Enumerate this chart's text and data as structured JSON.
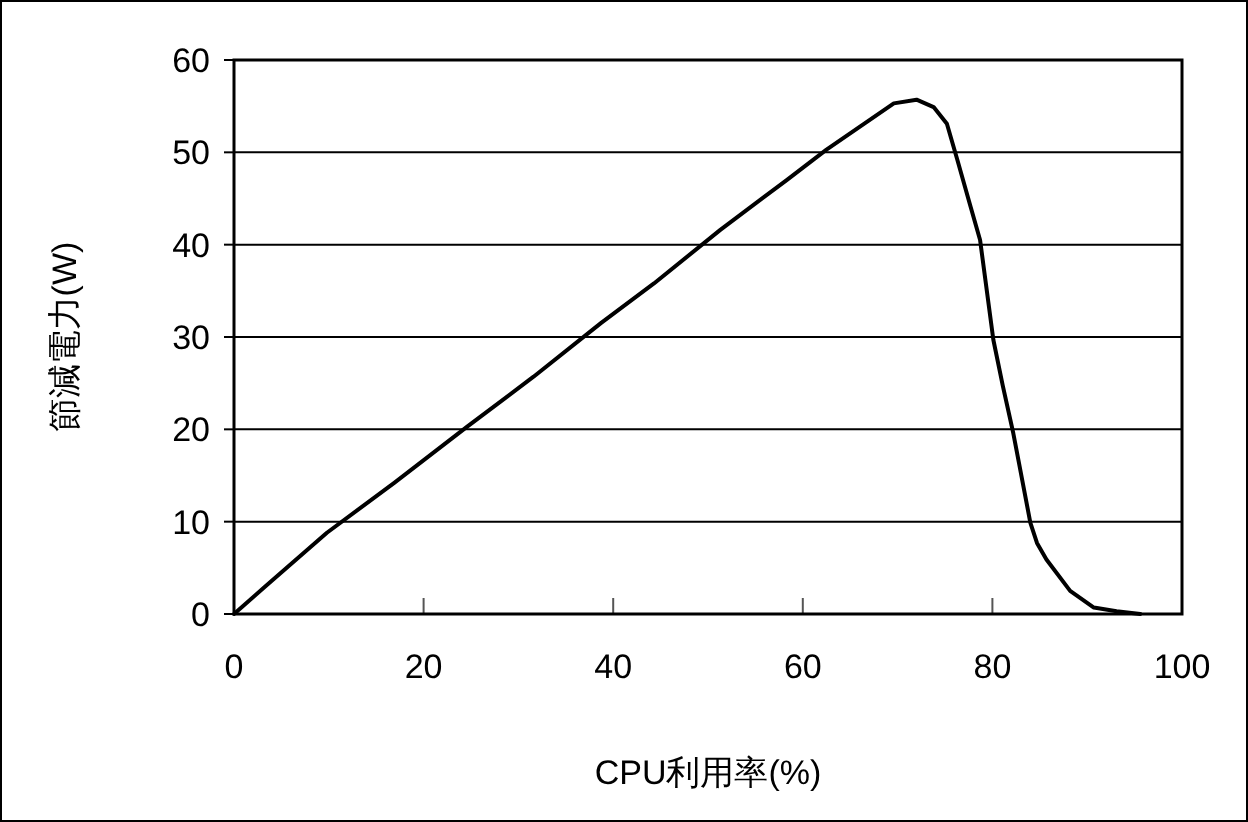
{
  "chart_data": {
    "type": "line",
    "xlabel": "CPU利用率(%)",
    "ylabel": "節減電力(W)",
    "xlim": [
      0,
      100
    ],
    "xticks": [
      0,
      20,
      40,
      60,
      80,
      100
    ],
    "ylim": [
      0,
      60
    ],
    "yticks": [
      0,
      10,
      20,
      30,
      40,
      50,
      60
    ],
    "grid": "y",
    "series": [
      {
        "color": "#000000",
        "x": [
          0,
          3.2,
          9.8,
          16.9,
          24.6,
          31.6,
          38.7,
          44.3,
          51.3,
          58.3,
          62.5,
          69.6,
          72.0,
          73.8,
          75.2,
          76.3,
          77.7,
          78.7,
          80.1,
          81.1,
          82.2,
          84.0,
          84.7,
          85.7,
          88.2,
          90.7,
          93.1,
          95.6
        ],
        "values": [
          0,
          2.9,
          8.8,
          14.2,
          20.3,
          25.7,
          31.5,
          35.8,
          41.6,
          47.0,
          50.3,
          55.3,
          55.7,
          54.9,
          53.1,
          49.2,
          44.1,
          40.5,
          29.7,
          24.7,
          19.6,
          9.9,
          7.7,
          5.9,
          2.5,
          0.7,
          0.3,
          0
        ]
      }
    ]
  }
}
